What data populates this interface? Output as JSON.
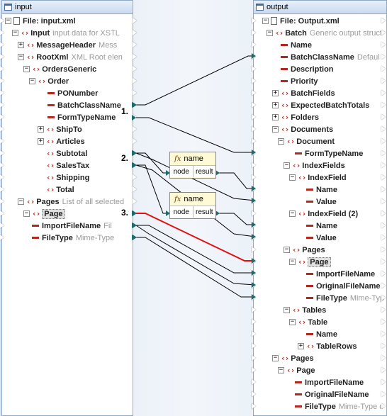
{
  "left": {
    "title": "input",
    "file_label": "File: input.xml",
    "items": [
      {
        "label": "Input",
        "desc": "input data for XSTL"
      },
      {
        "label": "MessageHeader",
        "desc": "Mess"
      },
      {
        "label": "RootXml",
        "desc": "XML Root elen"
      },
      {
        "label": "OrdersGeneric",
        "desc": ""
      },
      {
        "label": "Order",
        "desc": ""
      },
      {
        "label": "PONumber",
        "desc": ""
      },
      {
        "label": "BatchClassName",
        "desc": ""
      },
      {
        "label": "FormTypeName",
        "desc": ""
      },
      {
        "label": "ShipTo",
        "desc": ""
      },
      {
        "label": "Articles",
        "desc": ""
      },
      {
        "label": "Subtotal",
        "desc": ""
      },
      {
        "label": "SalesTax",
        "desc": ""
      },
      {
        "label": "Shipping",
        "desc": ""
      },
      {
        "label": "Total",
        "desc": ""
      },
      {
        "label": "Pages",
        "desc": "List of all selected"
      },
      {
        "label": "Page",
        "desc": ""
      },
      {
        "label": "ImportFileName",
        "desc": "Fil"
      },
      {
        "label": "FileType",
        "desc": "Mime-Type"
      }
    ]
  },
  "right": {
    "title": "output",
    "file_label": "File: Output.xml",
    "items": [
      {
        "label": "Batch",
        "desc": "Generic output struct"
      },
      {
        "label": "Name",
        "desc": ""
      },
      {
        "label": "BatchClassName",
        "desc": "Defaul"
      },
      {
        "label": "Description",
        "desc": ""
      },
      {
        "label": "Priority",
        "desc": ""
      },
      {
        "label": "BatchFields",
        "desc": ""
      },
      {
        "label": "ExpectedBatchTotals",
        "desc": ""
      },
      {
        "label": "Folders",
        "desc": ""
      },
      {
        "label": "Documents",
        "desc": ""
      },
      {
        "label": "Document",
        "desc": ""
      },
      {
        "label": "FormTypeName",
        "desc": ""
      },
      {
        "label": "IndexFields",
        "desc": ""
      },
      {
        "label": "IndexField",
        "desc": ""
      },
      {
        "label": "Name",
        "desc": ""
      },
      {
        "label": "Value",
        "desc": ""
      },
      {
        "label": "IndexField (2)",
        "desc": ""
      },
      {
        "label": "Name",
        "desc": ""
      },
      {
        "label": "Value",
        "desc": ""
      },
      {
        "label": "Pages",
        "desc": ""
      },
      {
        "label": "Page",
        "desc": ""
      },
      {
        "label": "ImportFileName",
        "desc": ""
      },
      {
        "label": "OriginalFileName",
        "desc": ""
      },
      {
        "label": "FileType",
        "desc": "Mime-Typ"
      },
      {
        "label": "Tables",
        "desc": ""
      },
      {
        "label": "Table",
        "desc": ""
      },
      {
        "label": "Name",
        "desc": ""
      },
      {
        "label": "TableRows",
        "desc": ""
      },
      {
        "label": "Pages",
        "desc": ""
      },
      {
        "label": "Page",
        "desc": ""
      },
      {
        "label": "ImportFileName",
        "desc": ""
      },
      {
        "label": "OriginalFileName",
        "desc": ""
      },
      {
        "label": "FileType",
        "desc": "Mime-Type c"
      }
    ]
  },
  "functions": [
    {
      "name": "name",
      "fx": "fx",
      "in": "node",
      "out": "result"
    },
    {
      "name": "name",
      "fx": "fx",
      "in": "node",
      "out": "result"
    }
  ],
  "steps": [
    "1.",
    "2.",
    "3."
  ],
  "colors": {
    "connector": "#1c6b6f",
    "highlight": "#e01010",
    "element": "#b5261e"
  }
}
